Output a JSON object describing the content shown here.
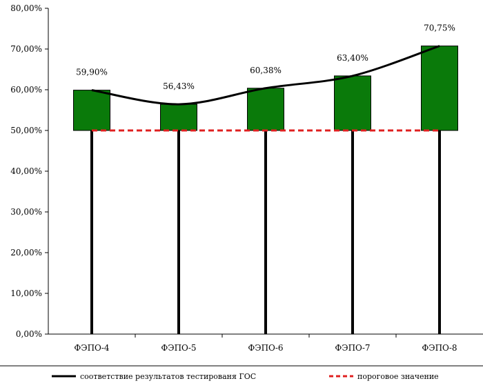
{
  "chart_data": {
    "type": "bar",
    "categories": [
      "ФЭПО-4",
      "ФЭПО-5",
      "ФЭПО-6",
      "ФЭПО-7",
      "ФЭПО-8"
    ],
    "bars": {
      "base": 50,
      "values": [
        59.9,
        56.43,
        60.38,
        63.4,
        70.75
      ],
      "color": "#0a7a0a"
    },
    "data_labels": [
      "59,90%",
      "56,43%",
      "60,38%",
      "63,40%",
      "70,75%"
    ],
    "series": [
      {
        "name": "соответствие результатов тестированя ГОС",
        "type": "line",
        "values": [
          59.9,
          56.43,
          60.38,
          63.4,
          70.75
        ],
        "color": "#000000",
        "smooth": true
      },
      {
        "name": "пороговое значение",
        "type": "line",
        "values": [
          50,
          50,
          50,
          50,
          50
        ],
        "color": "#e02020",
        "dashed": true
      }
    ],
    "y_ticks": [
      "0,00%",
      "10,00%",
      "20,00%",
      "30,00%",
      "40,00%",
      "50,00%",
      "60,00%",
      "70,00%",
      "80,00%"
    ],
    "ylim": [
      0,
      80
    ],
    "drop_lines": true,
    "legend_position": "bottom",
    "grid": false
  }
}
